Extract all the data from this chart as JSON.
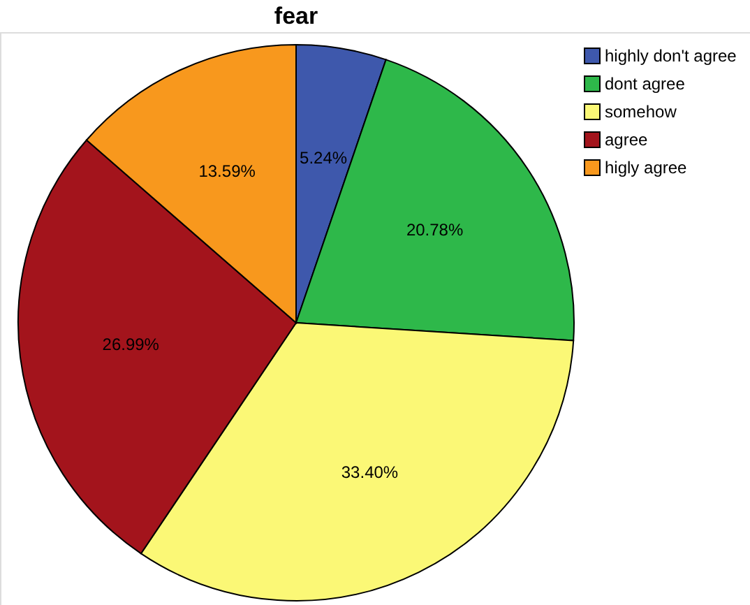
{
  "chart_data": {
    "type": "pie",
    "title": "fear",
    "categories": [
      "highly don't agree",
      "dont agree",
      "somehow",
      "agree",
      "higly agree"
    ],
    "values": [
      5.24,
      20.78,
      33.4,
      26.99,
      13.59
    ],
    "colors": [
      "#3e58ac",
      "#2eb84a",
      "#fbf876",
      "#a3141c",
      "#f8981d"
    ],
    "value_labels": [
      "5.24%",
      "20.78%",
      "33.40%",
      "26.99%",
      "13.59%"
    ],
    "legend": "top right"
  }
}
